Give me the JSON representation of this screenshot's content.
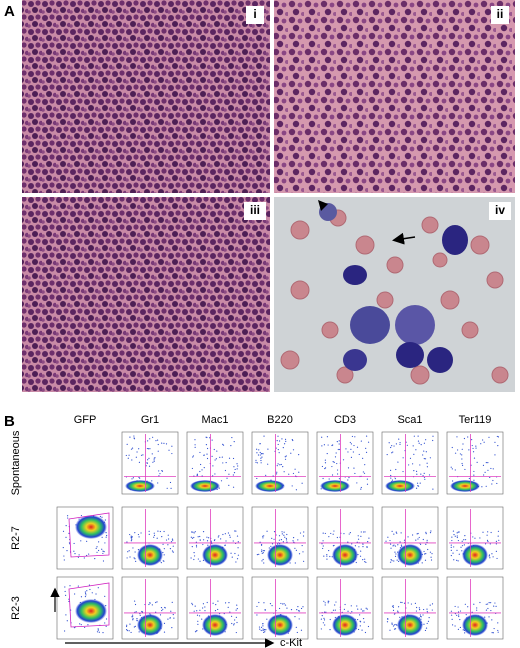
{
  "panel_a": {
    "label": "A",
    "images": [
      {
        "label": "i"
      },
      {
        "label": "ii"
      },
      {
        "label": "iii"
      },
      {
        "label": "iv"
      }
    ]
  },
  "panel_b": {
    "label": "B",
    "columns": [
      "GFP",
      "Gr1",
      "Mac1",
      "B220",
      "CD3",
      "Sca1",
      "Ter119"
    ],
    "rows": [
      "Spontaneous",
      "R2-7",
      "R2-3"
    ],
    "x_axis_label": "c-Kit"
  }
}
